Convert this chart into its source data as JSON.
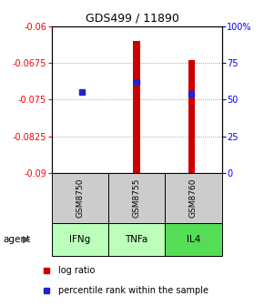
{
  "title": "GDS499 / 11890",
  "samples": [
    "GSM8750",
    "GSM8755",
    "GSM8760"
  ],
  "agents": [
    "IFNg",
    "TNFa",
    "IL4"
  ],
  "log_ratios": [
    -0.09,
    -0.063,
    -0.067
  ],
  "percentile_ranks": [
    55,
    62,
    54
  ],
  "ylim_left": [
    -0.09,
    -0.06
  ],
  "ylim_right": [
    0,
    100
  ],
  "yticks_left": [
    -0.09,
    -0.0825,
    -0.075,
    -0.0675,
    -0.06
  ],
  "yticks_right": [
    0,
    25,
    50,
    75,
    100
  ],
  "ytick_labels_left": [
    "-0.09",
    "-0.0825",
    "-0.075",
    "-0.0675",
    "-0.06"
  ],
  "ytick_labels_right": [
    "0",
    "25",
    "50",
    "75",
    "100%"
  ],
  "bar_color": "#cc0000",
  "dot_color": "#2222cc",
  "gsm_bg": "#cccccc",
  "agent_colors": [
    "#bbffbb",
    "#bbffbb",
    "#55dd55"
  ],
  "legend_bar_color": "#cc0000",
  "legend_dot_color": "#2222cc",
  "grid_color": "#888888",
  "bar_baseline": -0.09,
  "bar_width": 0.12
}
